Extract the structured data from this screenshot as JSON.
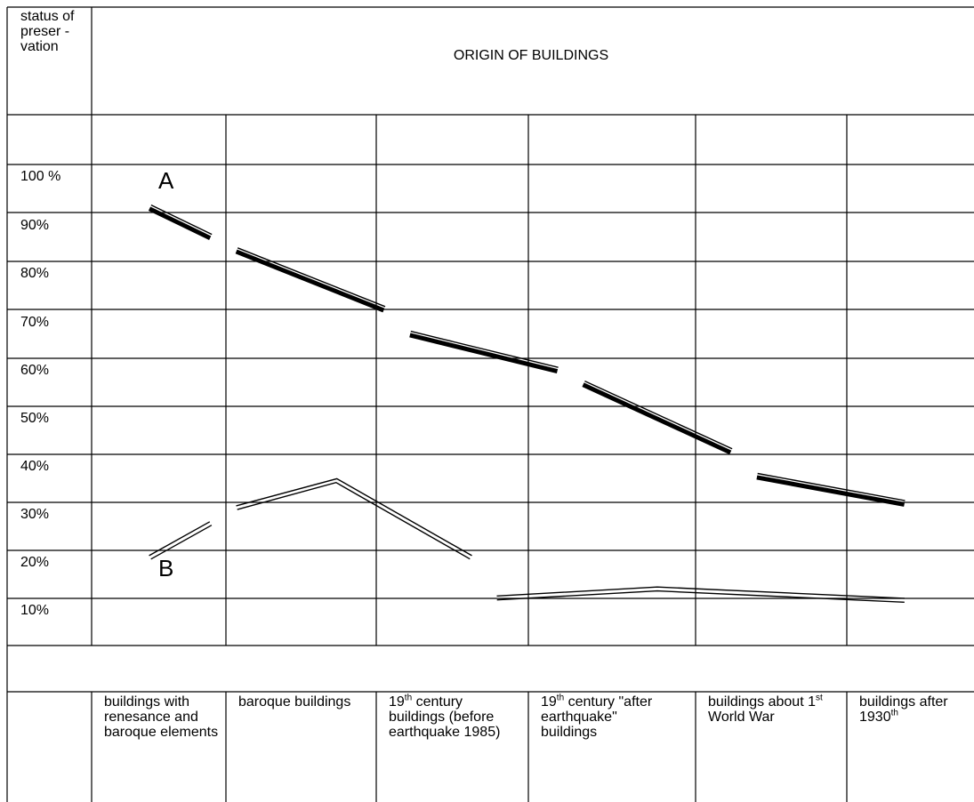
{
  "chart_data": {
    "type": "line",
    "title": "ORIGIN OF BUILDINGS",
    "ylabel": "status of preser -vation",
    "y_ticks": [
      "100 %",
      "90%",
      "80%",
      "70%",
      "60%",
      "50%",
      "40%",
      "30%",
      "20%",
      "10%"
    ],
    "ylim": [
      0,
      100
    ],
    "grid": true,
    "categories": [
      {
        "pre": "buildings with renesance and baroque elements",
        "sup": "",
        "post": ""
      },
      {
        "pre": "baroque buildings",
        "sup": "",
        "post": ""
      },
      {
        "pre": "19",
        "sup": "th",
        "post": " century buildings (before earthquake 1985)"
      },
      {
        "pre": "19",
        "sup": "th",
        "post": " century \"after earthquake\" buildings"
      },
      {
        "pre": "buildings about 1",
        "sup": "st",
        "post": " World War"
      },
      {
        "pre": "buildings after 1930",
        "sup": "th",
        "post": ""
      }
    ],
    "series": [
      {
        "name": "A",
        "style": "thick-double",
        "segments": [
          [
            [
              0.15,
              96
            ],
            [
              0.85,
              89.5
            ]
          ],
          [
            [
              1.15,
              86.5
            ],
            [
              2.85,
              73.5
            ]
          ],
          [
            [
              3.15,
              68
            ],
            [
              4.85,
              60
            ]
          ],
          [
            [
              5.15,
              57
            ],
            [
              6.85,
              42
            ]
          ],
          [
            [
              7.15,
              36.5
            ],
            [
              8.85,
              30.5
            ]
          ]
        ]
      },
      {
        "name": "B",
        "style": "thin-double",
        "segments": [
          [
            [
              0.15,
              18.5
            ],
            [
              0.85,
              26
            ]
          ],
          [
            [
              1.15,
              29.5
            ],
            [
              2.3,
              35.5
            ],
            [
              3.85,
              18.5
            ]
          ],
          [
            [
              4.15,
              9.5
            ],
            [
              6.0,
              11.5
            ],
            [
              8.85,
              9
            ]
          ]
        ]
      }
    ],
    "series_labels": [
      "A",
      "B"
    ]
  }
}
